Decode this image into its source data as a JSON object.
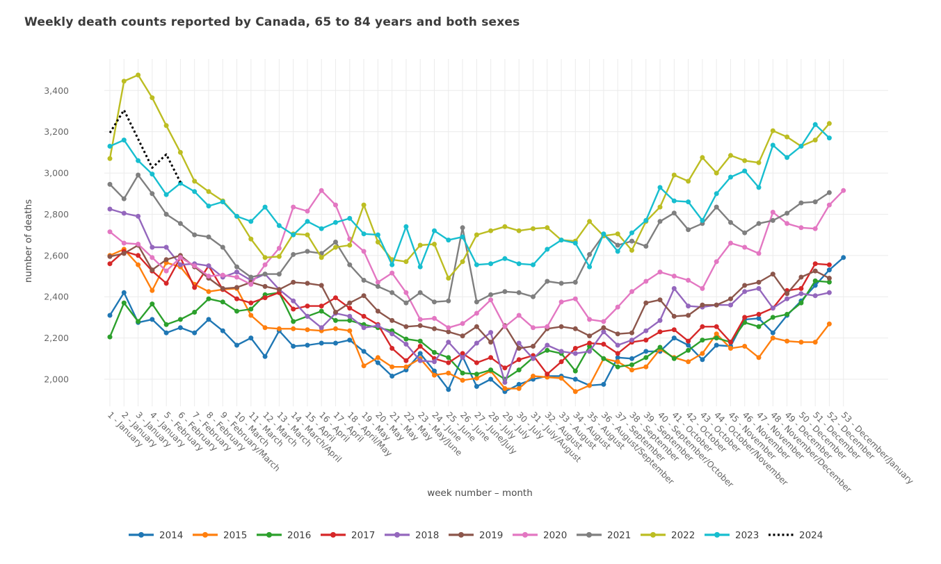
{
  "header": {
    "title": "Weekly death counts reported by Canada, 65 to 84 years and both sexes"
  },
  "chart_data": {
    "type": "line",
    "title": "Weekly death counts reported by Canada, 65 to 84 years and both sexes",
    "xlabel": "week number – month",
    "ylabel": "number of deaths",
    "grid": true,
    "legend_position": "bottom",
    "ylim": [
      1870,
      3560
    ],
    "y_ticks": [
      2000,
      2200,
      2400,
      2600,
      2800,
      3000,
      3200,
      3400
    ],
    "y_tick_labels": [
      "2,000",
      "2,200",
      "2,400",
      "2,600",
      "2,800",
      "3,000",
      "3,200",
      "3,400"
    ],
    "x_tick_labels": [
      "1 - January",
      "2 - January",
      "3 - January",
      "4 - January",
      "5 - February",
      "6 - February",
      "7 - February",
      "8 - February",
      "9 - February/March",
      "10 - March",
      "11 - March",
      "12 - March",
      "13 - March",
      "14 - March/April",
      "15 - April",
      "16 - April",
      "17 - April",
      "18 - April/May",
      "19 - May",
      "20 - May",
      "21 - May",
      "22 - May",
      "23 - May/June",
      "24 - June",
      "25 - June",
      "26 - June",
      "27 - June/July",
      "28 - July",
      "29 - July",
      "30 - July",
      "31 - July/August",
      "32 - August",
      "33 - August",
      "34 - August",
      "35 - August",
      "36 - August/September",
      "37 - September",
      "38 - September",
      "39 - September",
      "40 - September/October",
      "41 - October",
      "42 - October",
      "43 - October",
      "44 - October/November",
      "45 - November",
      "46 - November",
      "47 - November",
      "48 - November/December",
      "49 - December",
      "50 - December",
      "51 - December",
      "52 - December",
      "53 - December/January"
    ],
    "series": [
      {
        "name": "2014",
        "color": "#1f77b4",
        "style": "solid",
        "markers": true,
        "values": [
          2310,
          2420,
          2275,
          2290,
          2225,
          2250,
          2225,
          2290,
          2235,
          2165,
          2200,
          2110,
          2235,
          2160,
          2165,
          2175,
          2175,
          2190,
          2135,
          2080,
          2015,
          2045,
          2125,
          2040,
          1950,
          2110,
          1965,
          2000,
          1940,
          1975,
          2000,
          2015,
          2015,
          2000,
          1970,
          1975,
          2105,
          2100,
          2135,
          2135,
          2200,
          2165,
          2095,
          2165,
          2160,
          2290,
          2295,
          2225,
          2310,
          2380,
          2455,
          2530,
          2590
        ]
      },
      {
        "name": "2015",
        "color": "#ff7f0e",
        "style": "solid",
        "markers": true,
        "values": [
          2600,
          2630,
          2555,
          2430,
          2565,
          2545,
          2460,
          2425,
          2435,
          2440,
          2310,
          2250,
          2245,
          2245,
          2240,
          2235,
          2245,
          2235,
          2065,
          2105,
          2060,
          2060,
          2100,
          2020,
          2030,
          1995,
          2005,
          2040,
          1955,
          1955,
          2015,
          2010,
          2005,
          1940,
          1970,
          2100,
          2085,
          2045,
          2060,
          2145,
          2105,
          2085,
          2125,
          2220,
          2150,
          2160,
          2105,
          2200,
          2185,
          2180,
          2180,
          2268
        ]
      },
      {
        "name": "2016",
        "color": "#2ca02c",
        "style": "solid",
        "markers": true,
        "values": [
          2205,
          2370,
          2280,
          2365,
          2265,
          2290,
          2325,
          2390,
          2375,
          2330,
          2340,
          2410,
          2420,
          2280,
          2305,
          2330,
          2285,
          2285,
          2265,
          2250,
          2235,
          2195,
          2185,
          2130,
          2105,
          2030,
          2025,
          2045,
          2000,
          2045,
          2105,
          2140,
          2125,
          2040,
          2160,
          2100,
          2060,
          2070,
          2105,
          2155,
          2100,
          2140,
          2190,
          2200,
          2180,
          2275,
          2255,
          2300,
          2315,
          2370,
          2477,
          2471
        ]
      },
      {
        "name": "2017",
        "color": "#d62728",
        "style": "solid",
        "markers": true,
        "values": [
          2560,
          2620,
          2600,
          2525,
          2465,
          2590,
          2445,
          2550,
          2435,
          2390,
          2370,
          2395,
          2420,
          2340,
          2355,
          2355,
          2395,
          2345,
          2305,
          2265,
          2150,
          2090,
          2160,
          2100,
          2080,
          2125,
          2080,
          2105,
          2055,
          2095,
          2115,
          2025,
          2085,
          2150,
          2175,
          2170,
          2125,
          2180,
          2190,
          2230,
          2240,
          2185,
          2255,
          2255,
          2180,
          2300,
          2315,
          2345,
          2430,
          2440,
          2560,
          2555
        ]
      },
      {
        "name": "2018",
        "color": "#9467bd",
        "style": "solid",
        "markers": true,
        "values": [
          2825,
          2805,
          2790,
          2640,
          2640,
          2555,
          2560,
          2550,
          2495,
          2520,
          2480,
          2510,
          2435,
          2380,
          2305,
          2250,
          2320,
          2305,
          2250,
          2260,
          2220,
          2170,
          2090,
          2085,
          2180,
          2105,
          2175,
          2227,
          1985,
          2175,
          2100,
          2165,
          2135,
          2125,
          2135,
          2230,
          2165,
          2190,
          2235,
          2285,
          2440,
          2355,
          2350,
          2360,
          2360,
          2425,
          2440,
          2345,
          2390,
          2415,
          2405,
          2420
        ]
      },
      {
        "name": "2019",
        "color": "#8c564b",
        "style": "solid",
        "markers": true,
        "values": [
          2595,
          2610,
          2650,
          2530,
          2580,
          2600,
          2545,
          2490,
          2440,
          2445,
          2470,
          2450,
          2435,
          2470,
          2465,
          2455,
          2325,
          2370,
          2405,
          2330,
          2285,
          2255,
          2260,
          2245,
          2230,
          2210,
          2255,
          2180,
          2260,
          2150,
          2160,
          2245,
          2255,
          2245,
          2210,
          2250,
          2220,
          2225,
          2370,
          2385,
          2305,
          2310,
          2360,
          2360,
          2390,
          2455,
          2470,
          2510,
          2415,
          2495,
          2525,
          2490
        ]
      },
      {
        "name": "2020",
        "color": "#e377c2",
        "style": "solid",
        "markers": true,
        "values": [
          2715,
          2660,
          2655,
          2590,
          2525,
          2590,
          2550,
          2500,
          2505,
          2495,
          2460,
          2555,
          2635,
          2835,
          2815,
          2915,
          2845,
          2680,
          2620,
          2470,
          2515,
          2420,
          2290,
          2295,
          2250,
          2270,
          2320,
          2385,
          2255,
          2310,
          2250,
          2255,
          2375,
          2390,
          2290,
          2280,
          2350,
          2425,
          2475,
          2520,
          2500,
          2480,
          2440,
          2570,
          2660,
          2640,
          2610,
          2810,
          2755,
          2735,
          2730,
          2845,
          2915
        ]
      },
      {
        "name": "2021",
        "color": "#7f7f7f",
        "style": "solid",
        "markers": true,
        "values": [
          2945,
          2875,
          2990,
          2900,
          2800,
          2755,
          2700,
          2690,
          2640,
          2545,
          2495,
          2510,
          2510,
          2605,
          2620,
          2610,
          2665,
          2555,
          2480,
          2450,
          2420,
          2370,
          2420,
          2375,
          2380,
          2735,
          2375,
          2410,
          2425,
          2420,
          2400,
          2475,
          2465,
          2470,
          2605,
          2700,
          2650,
          2670,
          2645,
          2765,
          2806,
          2725,
          2755,
          2835,
          2760,
          2710,
          2755,
          2770,
          2805,
          2855,
          2860,
          2905
        ]
      },
      {
        "name": "2022",
        "color": "#bcbd22",
        "style": "solid",
        "markers": true,
        "values": [
          3070,
          3445,
          3475,
          3365,
          3230,
          3100,
          2960,
          2910,
          2865,
          2790,
          2680,
          2590,
          2595,
          2705,
          2700,
          2590,
          2640,
          2650,
          2845,
          2665,
          2580,
          2570,
          2650,
          2655,
          2490,
          2570,
          2700,
          2720,
          2740,
          2720,
          2730,
          2735,
          2675,
          2670,
          2765,
          2695,
          2705,
          2625,
          2765,
          2835,
          2990,
          2960,
          3075,
          3000,
          3085,
          3060,
          3050,
          3205,
          3175,
          3130,
          3160,
          3240
        ]
      },
      {
        "name": "2023",
        "color": "#17becf",
        "style": "solid",
        "markers": true,
        "values": [
          3130,
          3160,
          3060,
          2995,
          2895,
          2950,
          2910,
          2840,
          2860,
          2790,
          2765,
          2835,
          2745,
          2700,
          2765,
          2730,
          2760,
          2780,
          2705,
          2700,
          2555,
          2740,
          2545,
          2720,
          2675,
          2690,
          2555,
          2560,
          2585,
          2560,
          2555,
          2630,
          2675,
          2660,
          2545,
          2705,
          2620,
          2710,
          2770,
          2930,
          2865,
          2860,
          2770,
          2900,
          2980,
          3010,
          2930,
          3135,
          3075,
          3130,
          3235,
          3170
        ]
      },
      {
        "name": "2024",
        "color": "#000000",
        "style": "dotted",
        "markers": false,
        "values": [
          3195,
          3305,
          3165,
          3025,
          3090,
          2955
        ]
      }
    ]
  },
  "style": {
    "gridline_color": "#ebebeb",
    "tick_label_color": "#666666",
    "axis_title_color": "#4a4a4a",
    "legend_text_color": "#3d3d3d",
    "background_color": "#ffffff"
  }
}
